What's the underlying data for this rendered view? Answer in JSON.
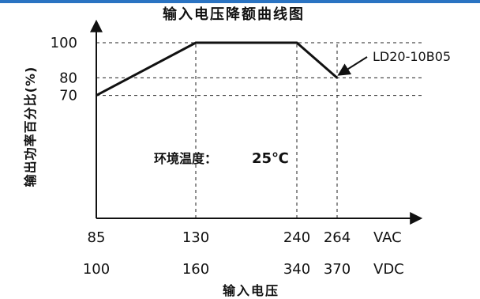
{
  "chart_data": {
    "type": "line",
    "title": "输入电压降额曲线图",
    "xlabel": "输入电压",
    "ylabel": "输出功率百分比(%)",
    "x_units": [
      "VAC",
      "VDC"
    ],
    "x_ticks": [
      {
        "vac": "85",
        "vdc": "100"
      },
      {
        "vac": "130",
        "vdc": "160"
      },
      {
        "vac": "240",
        "vdc": "340"
      },
      {
        "vac": "264",
        "vdc": "370"
      }
    ],
    "y_ticks": [
      100,
      80,
      70
    ],
    "ylim": [
      0,
      110
    ],
    "grid": "dashed",
    "annotation": {
      "label": "环境温度：",
      "value": "25℃"
    },
    "series": [
      {
        "name": "LD20-10B05",
        "points": [
          {
            "vac": 85,
            "y": 70
          },
          {
            "vac": 130,
            "y": 100
          },
          {
            "vac": 240,
            "y": 100
          },
          {
            "vac": 264,
            "y": 80
          }
        ]
      }
    ]
  }
}
